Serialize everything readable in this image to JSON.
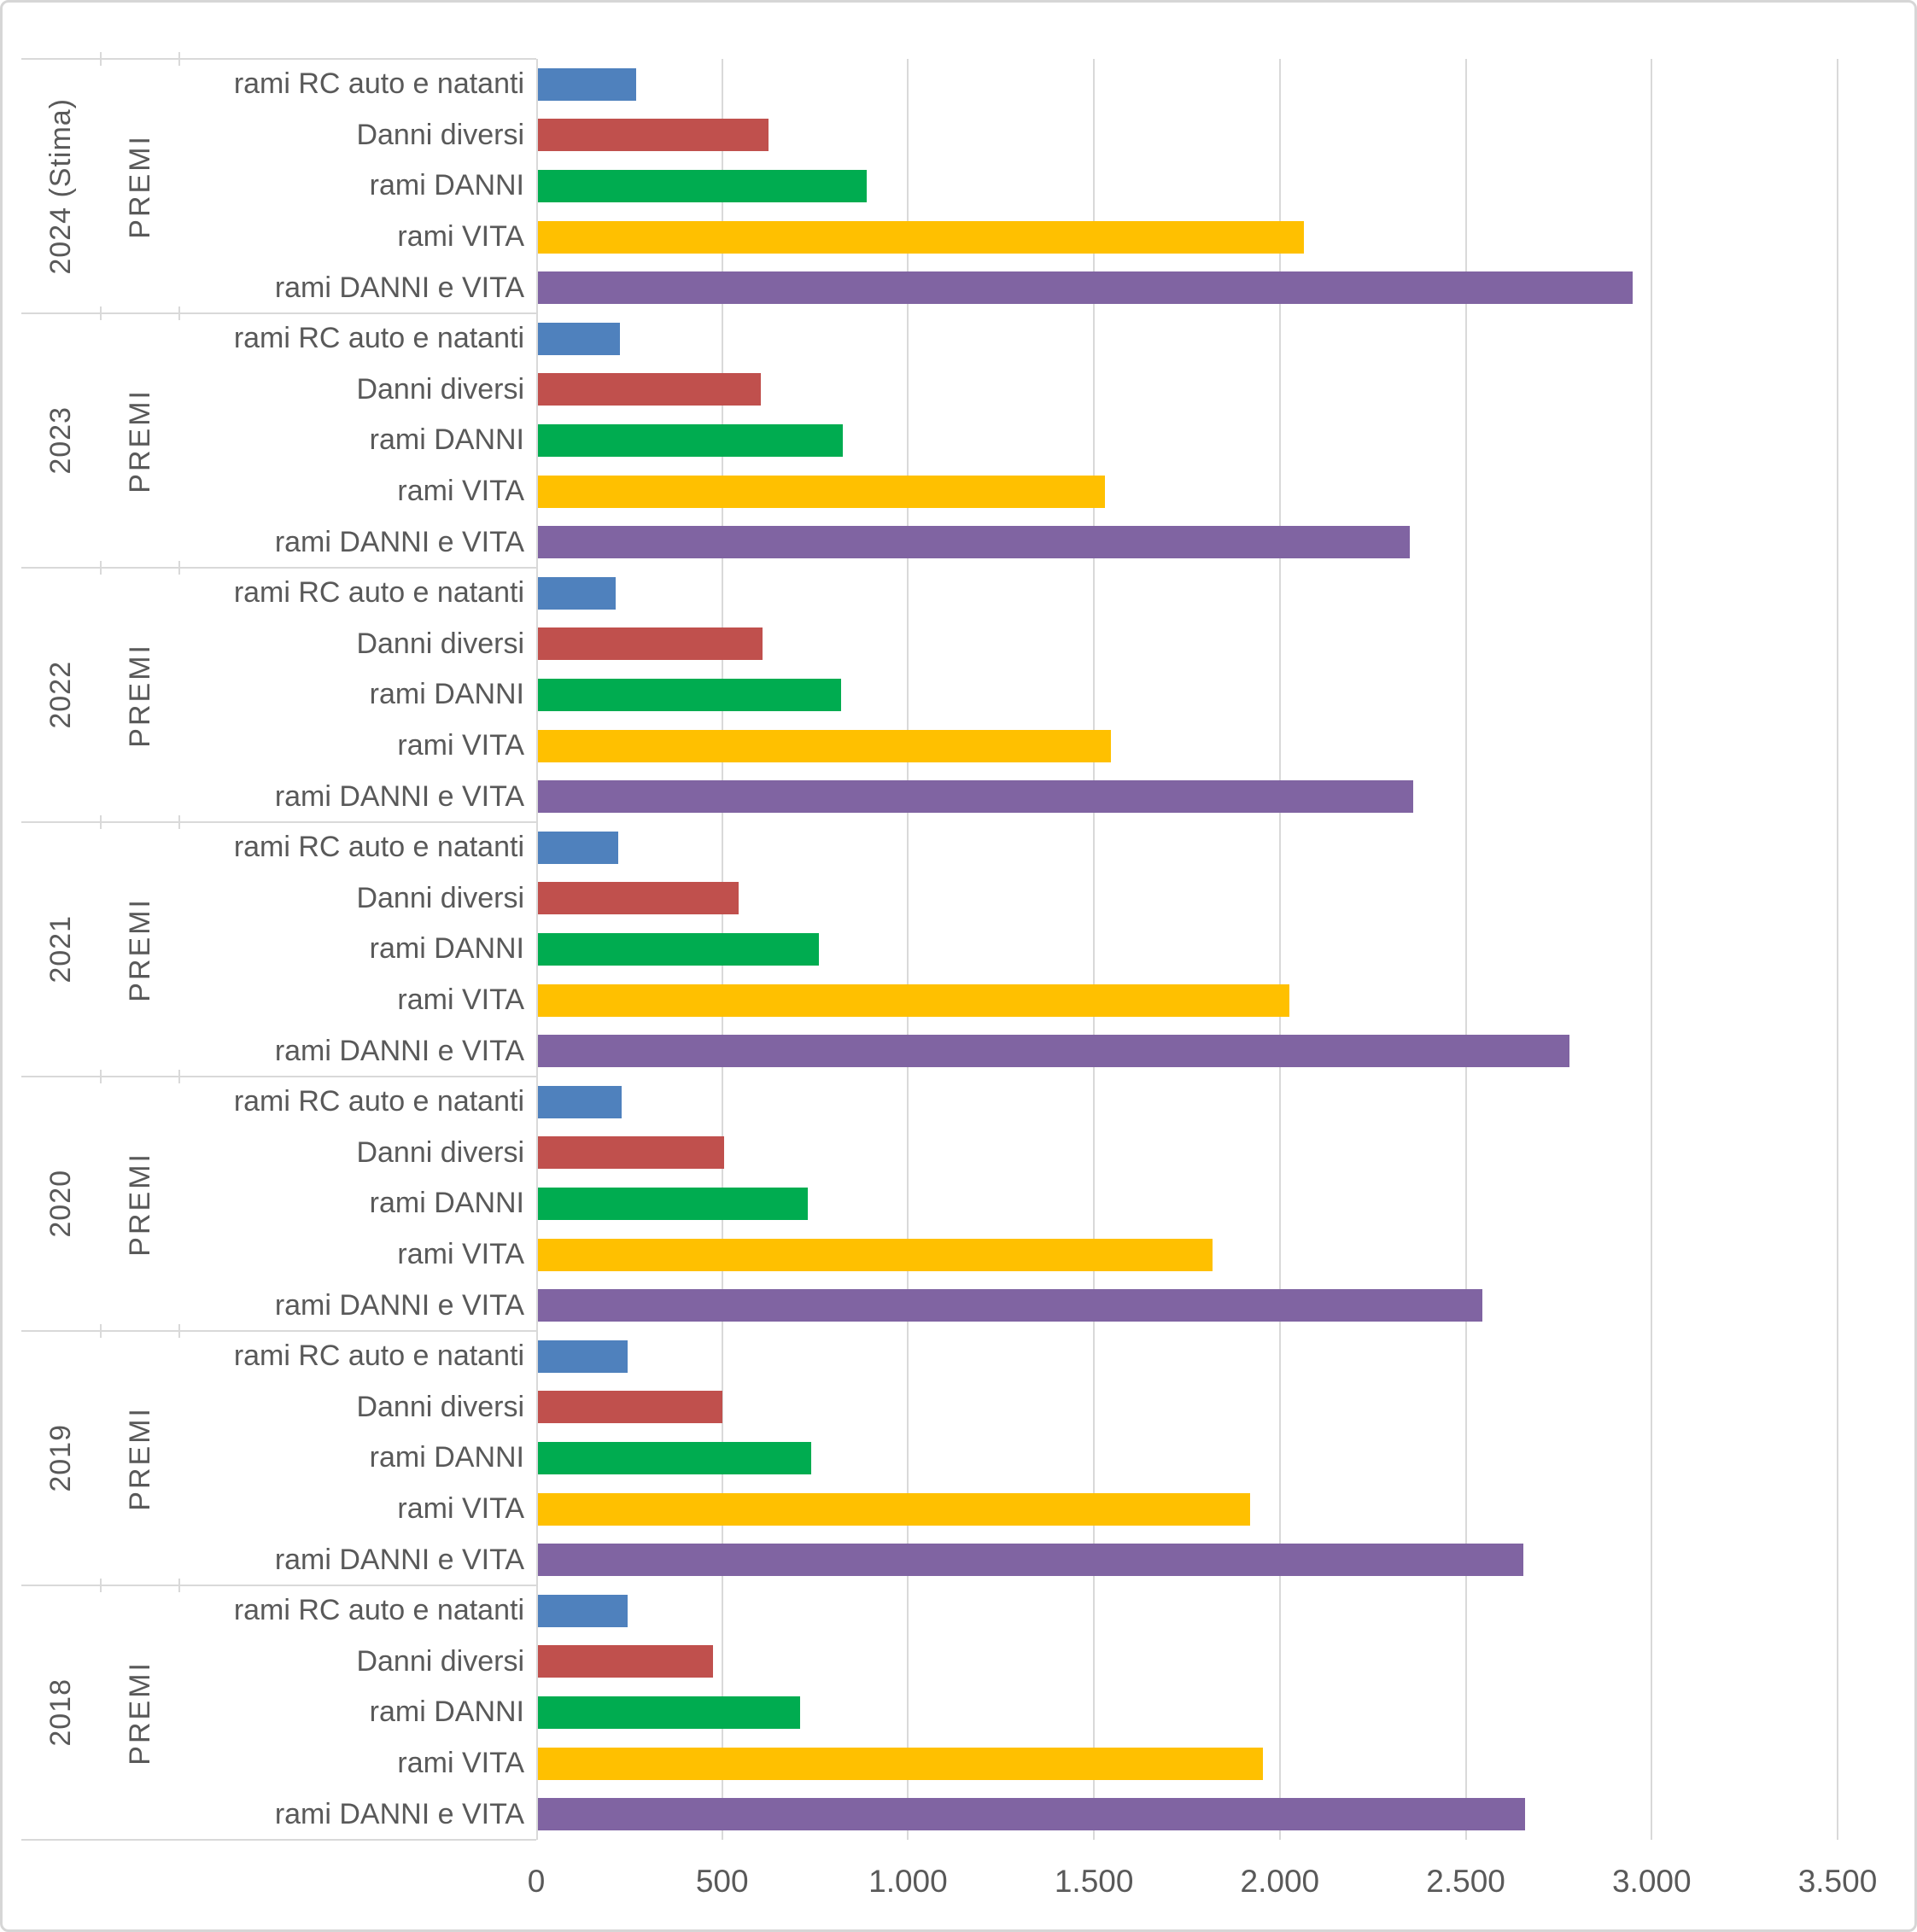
{
  "chart_data": {
    "type": "bar",
    "orientation": "horizontal",
    "title": "",
    "xlabel": "",
    "ylabel": "",
    "xlim": [
      0,
      3500
    ],
    "xticks": [
      "0",
      "500",
      "1.000",
      "1.500",
      "2.000",
      "2.500",
      "3.000",
      "3.500"
    ],
    "grid": true,
    "grid_color": "#D9D9D9",
    "text_color": "#595959",
    "legend": "none",
    "series_labels": [
      "rami RC auto e natanti",
      "Danni diversi",
      "rami DANNI",
      "rami VITA",
      "rami DANNI e VITA"
    ],
    "series_colors": [
      "#4F81BD",
      "#C0504D",
      "#00AC50",
      "#FFC000",
      "#8064A2"
    ],
    "groups": [
      {
        "year": "2024 (Stima)",
        "measure": "PREMI",
        "values": [
          265,
          620,
          885,
          2060,
          2945
        ]
      },
      {
        "year": "2023",
        "measure": "PREMI",
        "values": [
          220,
          600,
          820,
          1525,
          2345
        ]
      },
      {
        "year": "2022",
        "measure": "PREMI",
        "values": [
          210,
          605,
          815,
          1540,
          2355
        ]
      },
      {
        "year": "2021",
        "measure": "PREMI",
        "values": [
          215,
          540,
          755,
          2020,
          2775
        ]
      },
      {
        "year": "2020",
        "measure": "PREMI",
        "values": [
          225,
          500,
          725,
          1815,
          2540
        ]
      },
      {
        "year": "2019",
        "measure": "PREMI",
        "values": [
          240,
          495,
          735,
          1915,
          2650
        ]
      },
      {
        "year": "2018",
        "measure": "PREMI",
        "values": [
          240,
          470,
          705,
          1950,
          2655
        ]
      }
    ]
  }
}
